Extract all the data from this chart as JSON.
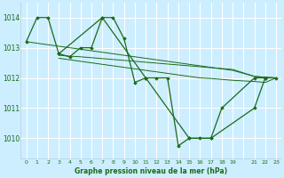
{
  "background_color": "#cceeff",
  "grid_color": "#ffffff",
  "line_color": "#1a6b1a",
  "title": "Graphe pression niveau de la mer (hPa)",
  "xlim": [
    -0.5,
    23.5
  ],
  "ylim": [
    1009.3,
    1014.5
  ],
  "yticks": [
    1010,
    1011,
    1012,
    1013,
    1014
  ],
  "xtick_labels": [
    "0",
    "1",
    "2",
    "3",
    "4",
    "5",
    "6",
    "7",
    "8",
    "9",
    "10",
    "11",
    "12",
    "13",
    "14",
    "15",
    "16",
    "17",
    "18",
    "19",
    "",
    "21",
    "22",
    "23"
  ],
  "xtick_positions": [
    0,
    1,
    2,
    3,
    4,
    5,
    6,
    7,
    8,
    9,
    10,
    11,
    12,
    13,
    14,
    15,
    16,
    17,
    18,
    19,
    20,
    21,
    22,
    23
  ],
  "series_with_markers": {
    "x": [
      0,
      1,
      2,
      3,
      4,
      5,
      6,
      7,
      8,
      9,
      10,
      11,
      12,
      13,
      14,
      15,
      16,
      17,
      18,
      21,
      22,
      23
    ],
    "y": [
      1013.2,
      1014.0,
      1014.0,
      1012.8,
      1012.7,
      1013.0,
      1013.0,
      1014.0,
      1014.0,
      1013.3,
      1011.85,
      1012.0,
      1012.0,
      1012.0,
      1009.75,
      1010.0,
      1010.0,
      1010.0,
      1011.0,
      1012.0,
      1012.0,
      1012.0
    ]
  },
  "line2": {
    "x": [
      3,
      7,
      11,
      15,
      17,
      21,
      22
    ],
    "y": [
      1012.8,
      1014.0,
      1012.0,
      1010.0,
      1010.0,
      1011.0,
      1012.0
    ]
  },
  "line3_start_x": 3,
  "smooth_lines": [
    {
      "x": [
        3,
        4,
        5,
        6,
        7,
        8,
        9,
        10,
        11,
        12,
        13,
        14,
        15,
        16,
        17,
        18,
        19,
        21,
        22,
        23
      ],
      "y": [
        1012.65,
        1012.6,
        1012.55,
        1012.5,
        1012.45,
        1012.4,
        1012.35,
        1012.3,
        1012.25,
        1012.2,
        1012.15,
        1012.1,
        1012.05,
        1012.0,
        1011.98,
        1011.95,
        1011.92,
        1011.88,
        1011.85,
        1012.0
      ]
    },
    {
      "x": [
        3,
        4,
        5,
        6,
        7,
        8,
        9,
        10,
        11,
        12,
        13,
        14,
        15,
        16,
        17,
        18,
        19,
        21,
        22,
        23
      ],
      "y": [
        1012.75,
        1012.72,
        1012.7,
        1012.67,
        1012.64,
        1012.61,
        1012.58,
        1012.55,
        1012.52,
        1012.49,
        1012.46,
        1012.43,
        1012.4,
        1012.37,
        1012.34,
        1012.31,
        1012.28,
        1012.05,
        1012.02,
        1012.0
      ]
    },
    {
      "x": [
        0,
        1,
        2,
        3,
        4,
        5,
        6,
        7,
        8,
        9,
        10,
        11,
        12,
        13,
        14,
        15,
        16,
        17,
        18,
        19,
        21,
        22,
        23
      ],
      "y": [
        1013.2,
        1013.15,
        1013.1,
        1013.05,
        1013.0,
        1012.95,
        1012.9,
        1012.85,
        1012.8,
        1012.75,
        1012.7,
        1012.65,
        1012.6,
        1012.55,
        1012.5,
        1012.45,
        1012.4,
        1012.35,
        1012.3,
        1012.25,
        1012.05,
        1012.02,
        1012.0
      ]
    }
  ]
}
